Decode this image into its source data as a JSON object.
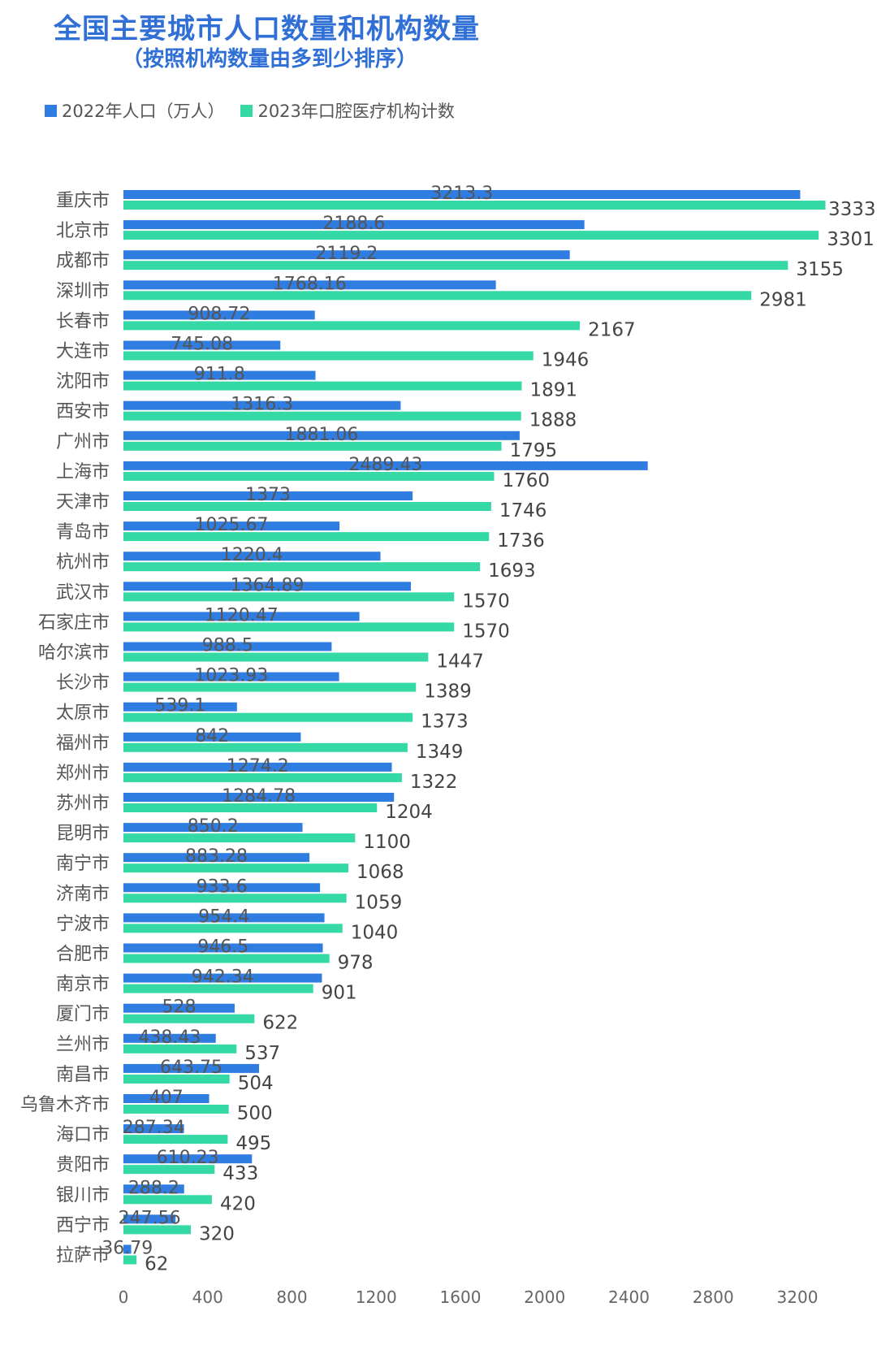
{
  "title": "全国主要城市人口数量和机构数量",
  "subtitle": "（按照机构数量由多到少排序）",
  "colors": {
    "population": "#2f7de1",
    "institutions": "#34d9a5"
  },
  "chart_data": {
    "type": "bar",
    "orientation": "horizontal",
    "categories": [
      "重庆市",
      "北京市",
      "成都市",
      "深圳市",
      "长春市",
      "大连市",
      "沈阳市",
      "西安市",
      "广州市",
      "上海市",
      "天津市",
      "青岛市",
      "杭州市",
      "武汉市",
      "石家庄市",
      "哈尔滨市",
      "长沙市",
      "太原市",
      "福州市",
      "郑州市",
      "苏州市",
      "昆明市",
      "南宁市",
      "济南市",
      "宁波市",
      "合肥市",
      "南京市",
      "厦门市",
      "兰州市",
      "南昌市",
      "乌鲁木齐市",
      "海口市",
      "贵阳市",
      "银川市",
      "西宁市",
      "拉萨市"
    ],
    "series": [
      {
        "name": "2022年人口（万人）",
        "values": [
          3213.3,
          2188.6,
          2119.2,
          1768.16,
          908.72,
          745.08,
          911.8,
          1316.3,
          1881.06,
          2489.43,
          1373,
          1025.67,
          1220.4,
          1364.89,
          1120.47,
          988.5,
          1023.93,
          539.1,
          842,
          1274.2,
          1284.78,
          850.2,
          883.28,
          933.6,
          954.4,
          946.5,
          942.34,
          528,
          438.43,
          643.75,
          407,
          287.34,
          610.23,
          288.2,
          247.56,
          36.79
        ],
        "labels": [
          "3213.3",
          "2188.6",
          "2119.2",
          "1768.16",
          "908.72",
          "745.08",
          "911.8",
          "1316.3",
          "1881.06",
          "2489.43",
          "1373",
          "1025.67",
          "1220.4",
          "1364.89",
          "1120.47",
          "988.5",
          "1023.93",
          "539.1",
          "842",
          "1274.2",
          "1284.78",
          "850.2",
          "883.28",
          "933.6",
          "954.4",
          "946.5",
          "942.34",
          "528",
          "438.43",
          "643.75",
          "407",
          "287.34",
          "610.23",
          "288.2",
          "247.56",
          "36.79"
        ]
      },
      {
        "name": "2023年口腔医疗机构计数",
        "values": [
          3333,
          3301,
          3155,
          2981,
          2167,
          1946,
          1891,
          1888,
          1795,
          1760,
          1746,
          1736,
          1693,
          1570,
          1570,
          1447,
          1389,
          1373,
          1349,
          1322,
          1204,
          1100,
          1068,
          1059,
          1040,
          978,
          901,
          622,
          537,
          504,
          500,
          495,
          433,
          420,
          320,
          62
        ],
        "labels": [
          "3333",
          "3301",
          "3155",
          "2981",
          "2167",
          "1946",
          "1891",
          "1888",
          "1795",
          "1760",
          "1746",
          "1736",
          "1693",
          "1570",
          "1570",
          "1447",
          "1389",
          "1373",
          "1349",
          "1322",
          "1204",
          "1100",
          "1068",
          "1059",
          "1040",
          "978",
          "901",
          "622",
          "537",
          "504",
          "500",
          "495",
          "433",
          "420",
          "320",
          "62"
        ]
      }
    ],
    "xlim": [
      0,
      3400
    ],
    "xticks": [
      "0",
      "400",
      "800",
      "1200",
      "1600",
      "2000",
      "2400",
      "2800",
      "3200"
    ],
    "legend_position": "top-left",
    "grid": false
  }
}
